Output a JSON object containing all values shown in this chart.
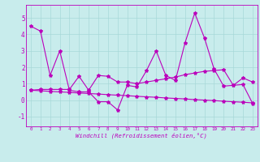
{
  "xlabel": "Windchill (Refroidissement éolien,°C)",
  "background_color": "#c8ecec",
  "grid_color": "#a8d8d8",
  "line_color": "#bb00bb",
  "x_ticks": [
    0,
    1,
    2,
    3,
    4,
    5,
    6,
    7,
    8,
    9,
    10,
    11,
    12,
    13,
    14,
    15,
    16,
    17,
    18,
    19,
    20,
    21,
    22,
    23
  ],
  "yticks": [
    -1,
    0,
    1,
    2,
    3,
    4,
    5
  ],
  "ylim": [
    -1.6,
    5.8
  ],
  "xlim": [
    -0.5,
    23.5
  ],
  "series": [
    [
      4.5,
      4.2,
      1.5,
      3.0,
      0.6,
      0.5,
      0.5,
      -0.1,
      -0.1,
      -0.6,
      0.9,
      0.8,
      1.8,
      3.0,
      1.5,
      1.2,
      3.5,
      5.3,
      3.8,
      1.9,
      0.85,
      0.9,
      1.35,
      1.1
    ],
    [
      0.6,
      0.65,
      0.65,
      0.65,
      0.65,
      1.45,
      0.6,
      1.5,
      1.45,
      1.1,
      1.1,
      1.0,
      1.1,
      1.2,
      1.3,
      1.4,
      1.55,
      1.65,
      1.75,
      1.8,
      1.85,
      0.9,
      0.95,
      -0.2
    ],
    [
      0.6,
      0.57,
      0.53,
      0.5,
      0.47,
      0.43,
      0.4,
      0.37,
      0.33,
      0.3,
      0.27,
      0.23,
      0.2,
      0.17,
      0.13,
      0.1,
      0.07,
      0.03,
      0.0,
      -0.03,
      -0.07,
      -0.1,
      -0.13,
      -0.17
    ]
  ]
}
